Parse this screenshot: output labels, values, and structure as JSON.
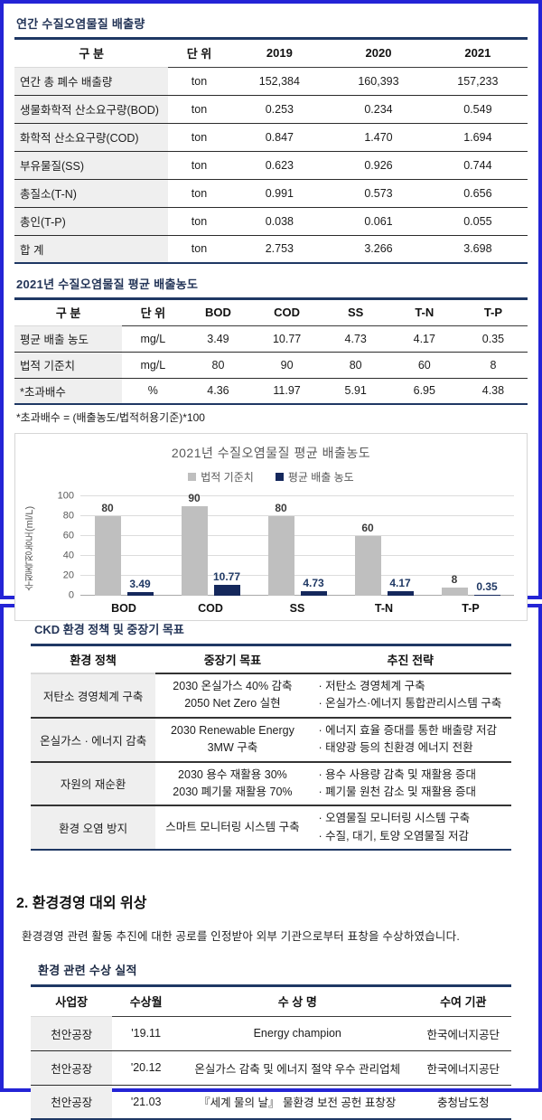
{
  "colors": {
    "frame_blue": "#2424d6",
    "navy_rule": "#1f3864",
    "first_col_fill": "#efefef",
    "bar_gray": "#bfbfbf",
    "bar_navy": "#15285c"
  },
  "box1": {
    "table1": {
      "title": "연간 수질오염물질 배출량",
      "headers": [
        "구 분",
        "단 위",
        "2019",
        "2020",
        "2021"
      ],
      "rows": [
        [
          "연간 총 폐수 배출량",
          "ton",
          "152,384",
          "160,393",
          "157,233"
        ],
        [
          "생물화학적 산소요구량(BOD)",
          "ton",
          "0.253",
          "0.234",
          "0.549"
        ],
        [
          "화학적 산소요구량(COD)",
          "ton",
          "0.847",
          "1.470",
          "1.694"
        ],
        [
          "부유물질(SS)",
          "ton",
          "0.623",
          "0.926",
          "0.744"
        ],
        [
          "총질소(T-N)",
          "ton",
          "0.991",
          "0.573",
          "0.656"
        ],
        [
          "총인(T-P)",
          "ton",
          "0.038",
          "0.061",
          "0.055"
        ],
        [
          "합 계",
          "ton",
          "2.753",
          "3.266",
          "3.698"
        ]
      ]
    },
    "table2": {
      "title": "2021년 수질오염물질 평균 배출농도",
      "headers": [
        "구 분",
        "단 위",
        "BOD",
        "COD",
        "SS",
        "T-N",
        "T-P"
      ],
      "rows": [
        [
          "평균 배출 농도",
          "mg/L",
          "3.49",
          "10.77",
          "4.73",
          "4.17",
          "0.35"
        ],
        [
          "법적 기준치",
          "mg/L",
          "80",
          "90",
          "80",
          "60",
          "8"
        ],
        [
          "*초과배수",
          "%",
          "4.36",
          "11.97",
          "5.91",
          "6.95",
          "4.38"
        ]
      ],
      "footnote": "*초과배수  = (배출농도/법적허용기준)*100"
    }
  },
  "chart_data": {
    "type": "bar",
    "title": "2021년 수질오염물질 평균 배출농도",
    "categories": [
      "BOD",
      "COD",
      "SS",
      "T-N",
      "T-P"
    ],
    "series": [
      {
        "name": "법적 기준치",
        "color": "#bfbfbf",
        "label_color": "#3a3a3a",
        "values": [
          80,
          90,
          80,
          60,
          8
        ],
        "labels": [
          "80",
          "90",
          "80",
          "60",
          "8"
        ]
      },
      {
        "name": "평균 배출 농도",
        "color": "#15285c",
        "label_color": "#1f3864",
        "values": [
          3.49,
          10.77,
          4.73,
          4.17,
          0.35
        ],
        "labels": [
          "3.49",
          "10.77",
          "4.73",
          "4.17",
          "0.35"
        ]
      }
    ],
    "ylabel": "수질측정농도(ml/L)",
    "yticks": [
      0,
      20,
      40,
      60,
      80,
      100
    ],
    "ylim": [
      0,
      100
    ],
    "grid": true,
    "legend_position": "top"
  },
  "box2": {
    "policy_table": {
      "title": "CKD 환경 정책 및 중장기 목표",
      "headers": [
        "환경 정책",
        "중장기 목표",
        "추진 전략"
      ],
      "rows": [
        {
          "policy": "저탄소 경영체계 구축",
          "goals": [
            "2030 온실가스 40% 감축",
            "2050 Net Zero 실현"
          ],
          "strategies": [
            "· 저탄소 경영체계 구축",
            "· 온실가스·에너지 통합관리시스템 구축"
          ]
        },
        {
          "policy": "온실가스 · 에너지 감축",
          "goals": [
            "2030 Renewable Energy",
            "3MW 구축"
          ],
          "strategies": [
            "· 에너지 효율 증대를 통한 배출량 저감",
            "· 태양광 등의 친환경 에너지 전환"
          ]
        },
        {
          "policy": "자원의 재순환",
          "goals": [
            "2030 용수 재활용 30%",
            "2030 폐기물 재활용 70%"
          ],
          "strategies": [
            "· 용수 사용량 감축 및 재활용 증대",
            "· 폐기물 원천 감소 및 재활용 증대"
          ]
        },
        {
          "policy": "환경 오염 방지",
          "goals": [
            "스마트 모니터링 시스템 구축"
          ],
          "strategies": [
            "· 오염물질 모니터링 시스템 구축",
            "· 수질, 대기, 토양 오염물질 저감"
          ]
        }
      ]
    },
    "section2": {
      "heading": "2. 환경경영 대외 위상",
      "paragraph": "환경경영 관련 활동 추진에 대한 공로를 인정받아 외부 기관으로부터 표창을 수상하였습니다.",
      "subtitle": "환경 관련 수상 실적",
      "awards_table": {
        "headers": [
          "사업장",
          "수상월",
          "수 상 명",
          "수여 기관"
        ],
        "rows": [
          [
            "천안공장",
            "'19.11",
            "Energy champion",
            "한국에너지공단"
          ],
          [
            "천안공장",
            "'20.12",
            "온실가스 감축 및 에너지 절약 우수 관리업체",
            "한국에너지공단"
          ],
          [
            "천안공장",
            "'21.03",
            "『세계 물의 날』 물환경 보전 공헌 표창장",
            "충청남도청"
          ]
        ]
      }
    }
  }
}
